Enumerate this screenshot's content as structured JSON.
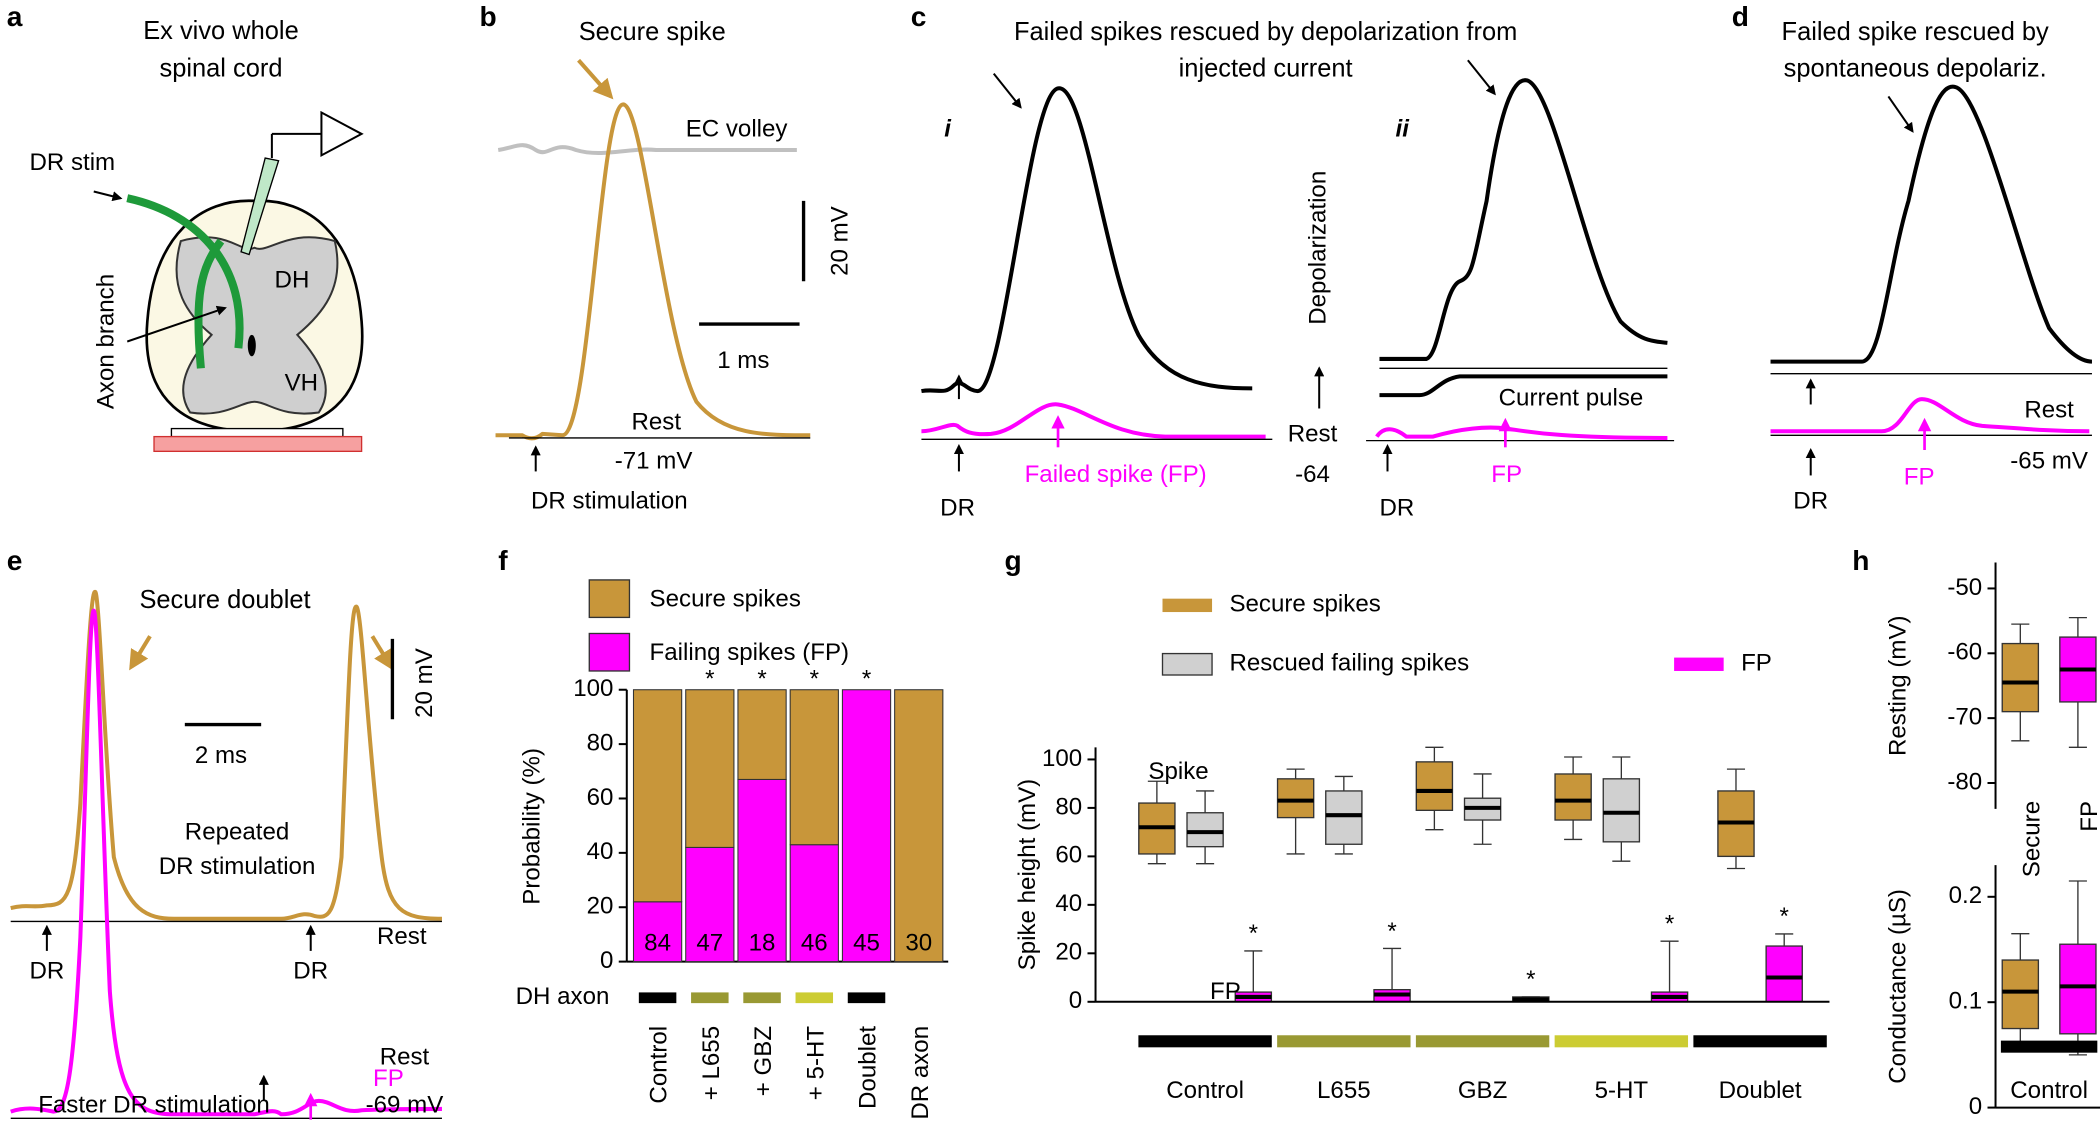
{
  "figure": {
    "a": {
      "letter": "a",
      "title": [
        "Ex vivo whole",
        "spinal cord"
      ],
      "dr_stim": "DR stim",
      "axon_branch": "Axon branch",
      "dh": "DH",
      "vh": "VH"
    },
    "b": {
      "letter": "b",
      "title": "Secure spike",
      "ec_volley": "EC volley",
      "scale_v": "20 mV",
      "scale_t": "1 ms",
      "rest": "Rest",
      "rest_value": "-71 mV",
      "stim": "DR stimulation"
    },
    "c": {
      "letter": "c",
      "title": [
        "Failed spikes rescued by depolarization from",
        "injected current"
      ],
      "sub_i": "i",
      "sub_ii": "ii",
      "depolarization": "Depolarization",
      "rest": "Rest",
      "rest_value": "-64",
      "current_pulse": "Current pulse",
      "dr": "DR",
      "failed_spike": "Failed spike (FP)",
      "fp": "FP"
    },
    "d": {
      "letter": "d",
      "title": [
        "Failed spike rescued by",
        "spontaneous depolariz."
      ],
      "rest": "Rest",
      "rest_value": "-65 mV",
      "dr": "DR",
      "fp": "FP"
    },
    "e": {
      "letter": "e",
      "secure_doublet": "Secure doublet",
      "scale_v": "20 mV",
      "scale_t": "2 ms",
      "repeated": [
        "Repeated",
        "DR stimulation"
      ],
      "rest": "Rest",
      "dr": "DR",
      "fp": "FP",
      "faster": "Faster DR stimulation",
      "rest_value": "-69 mV"
    },
    "f": {
      "letter": "f"
    },
    "g": {
      "letter": "g"
    },
    "h": {
      "letter": "h"
    }
  },
  "chart_data": [
    {
      "type": "stacked_bar",
      "ylabel": "Probability (%)",
      "categories": [
        "Control",
        "+ L655",
        "+ GBZ",
        "+ 5-HT",
        "Doublet",
        "DR axon"
      ],
      "series": [
        {
          "name": "Secure spikes",
          "color": "#c8963a",
          "values": [
            78,
            58,
            33,
            57,
            0,
            100
          ]
        },
        {
          "name": "Failing spikes (FP)",
          "color": "#ff00ff",
          "values": [
            22,
            42,
            67,
            43,
            100,
            0
          ]
        }
      ],
      "n_labels": [
        84,
        47,
        18,
        46,
        45,
        30
      ],
      "annotations": [
        null,
        "*",
        "*",
        "*",
        "*",
        null
      ],
      "row_label": "DH axon",
      "group_colors": [
        "#000000",
        "#999933",
        "#999933",
        "#cccc33",
        "#000000",
        null
      ],
      "ylim": [
        0,
        100
      ],
      "yticks": [
        0,
        20,
        40,
        60,
        80,
        100
      ]
    },
    {
      "type": "box",
      "ylabel": "Spike height (mV)",
      "categories": [
        "Control",
        "L655",
        "GBZ",
        "5-HT",
        "Doublet"
      ],
      "series": [
        {
          "name": "Secure spikes",
          "color": "#c8963a",
          "values": [
            [
              57,
              61,
              72,
              82,
              91
            ],
            [
              61,
              76,
              83,
              92,
              96
            ],
            [
              71,
              79,
              87,
              99,
              105
            ],
            [
              67,
              75,
              83,
              94,
              101
            ],
            [
              55,
              60,
              74,
              87,
              96
            ]
          ]
        },
        {
          "name": "Rescued failing spikes",
          "color": "#d0d0d0",
          "values": [
            [
              57,
              64,
              70,
              78,
              87
            ],
            [
              61,
              65,
              77,
              87,
              93
            ],
            [
              65,
              75,
              80,
              84,
              94
            ],
            [
              58,
              66,
              78,
              92,
              101
            ],
            null
          ]
        },
        {
          "name": "FP",
          "color": "#ff00ff",
          "values": [
            [
              0,
              0,
              2,
              4,
              21
            ],
            [
              0,
              0,
              3,
              5,
              22
            ],
            [
              0,
              0,
              1,
              2,
              2
            ],
            [
              0,
              0,
              2,
              4,
              25
            ],
            [
              2,
              0,
              10,
              23,
              28
            ]
          ],
          "annotations": [
            "*",
            "*",
            "*",
            "*",
            "*"
          ]
        }
      ],
      "annotations": [
        "Spike",
        "FP"
      ],
      "group_colors": [
        "#000000",
        "#999933",
        "#999933",
        "#cccc33",
        "#000000"
      ],
      "ylim": [
        0,
        105
      ],
      "yticks": [
        0,
        20,
        40,
        60,
        80,
        100
      ]
    },
    {
      "type": "box",
      "ylabel": "Resting (mV)",
      "categories": [
        "Control"
      ],
      "series": [
        {
          "name": "Secure",
          "color": "#c8963a",
          "values": [
            [
              -73.5,
              -69,
              -64.5,
              -58.5,
              -55.5
            ]
          ]
        },
        {
          "name": "FP",
          "color": "#ff00ff",
          "values": [
            [
              -74.5,
              -67.5,
              -62.5,
              -57.5,
              -54.5
            ]
          ]
        }
      ],
      "ylim": [
        -84,
        -46
      ],
      "yticks": [
        -80,
        -70,
        -60,
        -50
      ]
    },
    {
      "type": "box",
      "ylabel": "Conductance (µS)",
      "categories": [
        "Control"
      ],
      "series": [
        {
          "color": "#c8963a",
          "values": [
            [
              0.06,
              0.075,
              0.11,
              0.14,
              0.165
            ]
          ]
        },
        {
          "color": "#ff00ff",
          "values": [
            [
              0.05,
              0.07,
              0.115,
              0.155,
              0.215
            ]
          ]
        }
      ],
      "group_colors": [
        "#000000"
      ],
      "ylim": [
        0,
        0.23
      ],
      "yticks": [
        0,
        0.1,
        0.2
      ]
    }
  ]
}
